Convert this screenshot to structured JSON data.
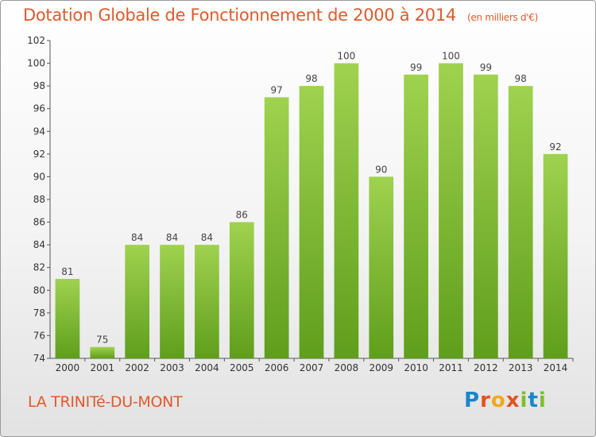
{
  "header": {
    "title": "Dotation Globale de Fonctionnement de 2000 à 2014",
    "unit": "(en milliers d'€)"
  },
  "footer": {
    "commune": "LA TRINITé-DU-MONT",
    "logo_letters": [
      "P",
      "r",
      "o",
      "x",
      "i",
      "t",
      "i"
    ]
  },
  "colors": {
    "accent": "#e05a2b",
    "bar_top": "#9fd24f",
    "bar_bottom": "#5f9e1c",
    "logo": [
      "#1a86c8",
      "#e2531f",
      "#f0a81c",
      "#e2531f",
      "#7cbf2b",
      "#1a86c8",
      "#7cbf2b"
    ]
  },
  "chart_data": {
    "type": "bar",
    "categories": [
      "2000",
      "2001",
      "2002",
      "2003",
      "2004",
      "2005",
      "2006",
      "2007",
      "2008",
      "2009",
      "2010",
      "2011",
      "2012",
      "2013",
      "2014"
    ],
    "values": [
      81,
      75,
      84,
      84,
      84,
      86,
      97,
      98,
      100,
      90,
      99,
      100,
      99,
      98,
      92
    ],
    "ylim": [
      74,
      102
    ],
    "yticks": [
      74,
      76,
      78,
      80,
      82,
      84,
      86,
      88,
      90,
      92,
      94,
      96,
      98,
      100,
      102
    ],
    "grid": false
  }
}
